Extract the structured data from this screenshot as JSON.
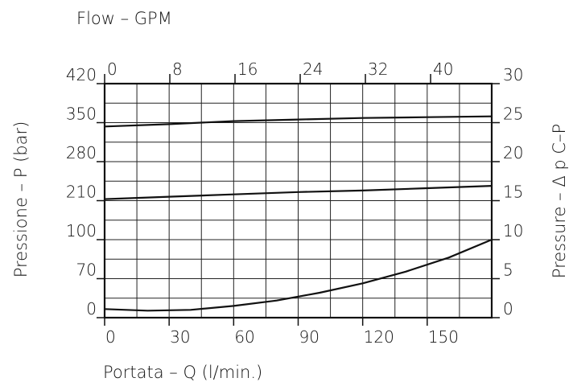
{
  "chart_data": {
    "type": "line",
    "top_axis": {
      "label": "Flow  –  GPM",
      "range": [
        0,
        47.5
      ],
      "ticks": [
        "0",
        "8",
        "16",
        "24",
        "32",
        "40"
      ],
      "tick_values": [
        0,
        8,
        16,
        24,
        32,
        40
      ]
    },
    "bottom_axis": {
      "label": "Portata  –  Q  (l/min.)",
      "range": [
        0,
        180
      ],
      "ticks": [
        "0",
        "30",
        "60",
        "90",
        "120",
        "150"
      ],
      "tick_values": [
        0,
        30,
        60,
        90,
        120,
        150
      ]
    },
    "left_axis": {
      "label": "Pressione  –  P  (bar)",
      "ticks": [
        "0",
        "70",
        "100",
        "210",
        "280",
        "350",
        "420"
      ]
    },
    "right_axis": {
      "label": "Pressure  –  Δ p  C–P",
      "range": [
        0,
        30
      ],
      "ticks": [
        "0",
        "5",
        "10",
        "15",
        "20",
        "25",
        "30"
      ]
    },
    "grid": true,
    "grid_rows": 12,
    "grid_cols": 12,
    "series": [
      {
        "axis": "right",
        "x": [
          0,
          30,
          60,
          90,
          120,
          150,
          180
        ],
        "y": [
          24.5,
          24.8,
          25.2,
          25.4,
          25.6,
          25.7,
          25.8
        ]
      },
      {
        "axis": "right",
        "x": [
          0,
          30,
          60,
          90,
          120,
          150,
          180
        ],
        "y": [
          15.2,
          15.5,
          15.8,
          16.1,
          16.3,
          16.6,
          16.9
        ]
      },
      {
        "axis": "right",
        "x": [
          0,
          20,
          40,
          60,
          80,
          100,
          120,
          140,
          160,
          180
        ],
        "y": [
          1.1,
          0.9,
          1.0,
          1.5,
          2.2,
          3.2,
          4.4,
          5.9,
          7.7,
          10.0
        ]
      }
    ]
  }
}
